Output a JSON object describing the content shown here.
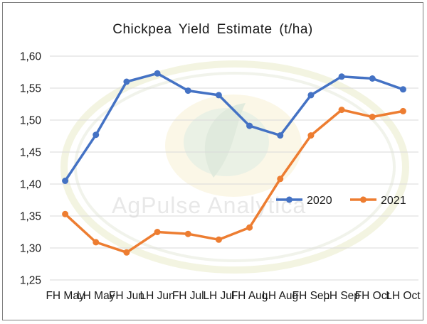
{
  "chart_data": {
    "type": "line",
    "title": "Chickpea Yield Estimate (t/ha)",
    "xlabel": "",
    "ylabel": "",
    "categories": [
      "FH May",
      "LH May",
      "FH Jun",
      "LH Jun",
      "FH Jul",
      "LH Jul",
      "FH Aug",
      "LH Aug",
      "FH Sep",
      "LH Sep",
      "FH Oct",
      "LH Oct"
    ],
    "y_tick_labels": [
      "1,25",
      "1,30",
      "1,35",
      "1,40",
      "1,45",
      "1,50",
      "1,55",
      "1,60"
    ],
    "ylim": [
      1.25,
      1.6
    ],
    "y_step": 0.05,
    "grid": true,
    "legend_position": "right, inside plot",
    "series": [
      {
        "name": "2020",
        "color": "#4472c4",
        "values": [
          1.405,
          1.477,
          1.56,
          1.573,
          1.546,
          1.539,
          1.491,
          1.476,
          1.539,
          1.568,
          1.565,
          1.548
        ]
      },
      {
        "name": "2021",
        "color": "#ed7d31",
        "values": [
          1.353,
          1.309,
          1.293,
          1.325,
          1.322,
          1.313,
          1.332,
          1.408,
          1.476,
          1.516,
          1.505,
          1.514
        ]
      }
    ],
    "watermark": "AgPulse Analytica"
  }
}
